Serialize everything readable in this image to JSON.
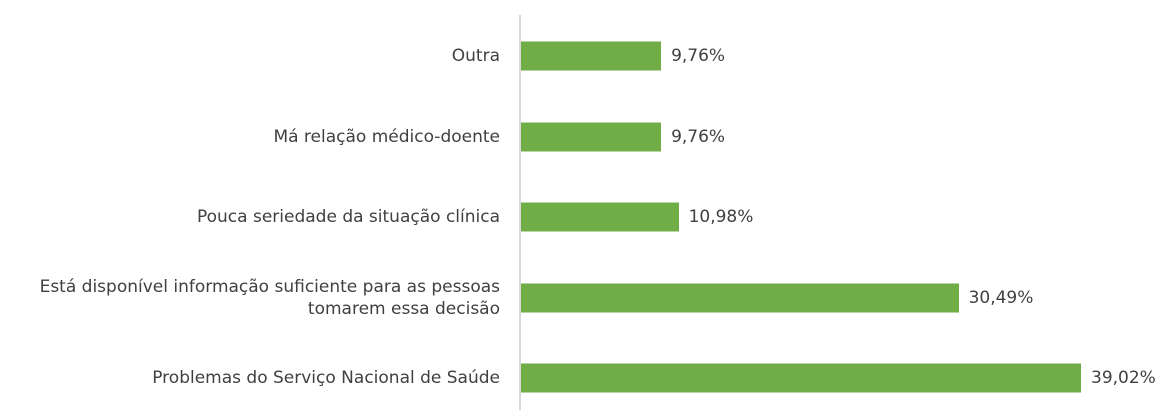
{
  "chart_data": {
    "type": "bar",
    "orientation": "horizontal",
    "categories": [
      "Outra",
      "Má relação médico-doente",
      "Pouca seriedade da situação clínica",
      "Está disponível informação suficiente para as pessoas tomarem essa decisão",
      "Problemas do Serviço Nacional de Saúde"
    ],
    "values": [
      9.76,
      9.76,
      10.98,
      30.49,
      39.02
    ],
    "value_labels": [
      "9,76%",
      "9,76%",
      "10,98%",
      "30,49%",
      "39,02%"
    ],
    "color": "#70ad47"
  }
}
